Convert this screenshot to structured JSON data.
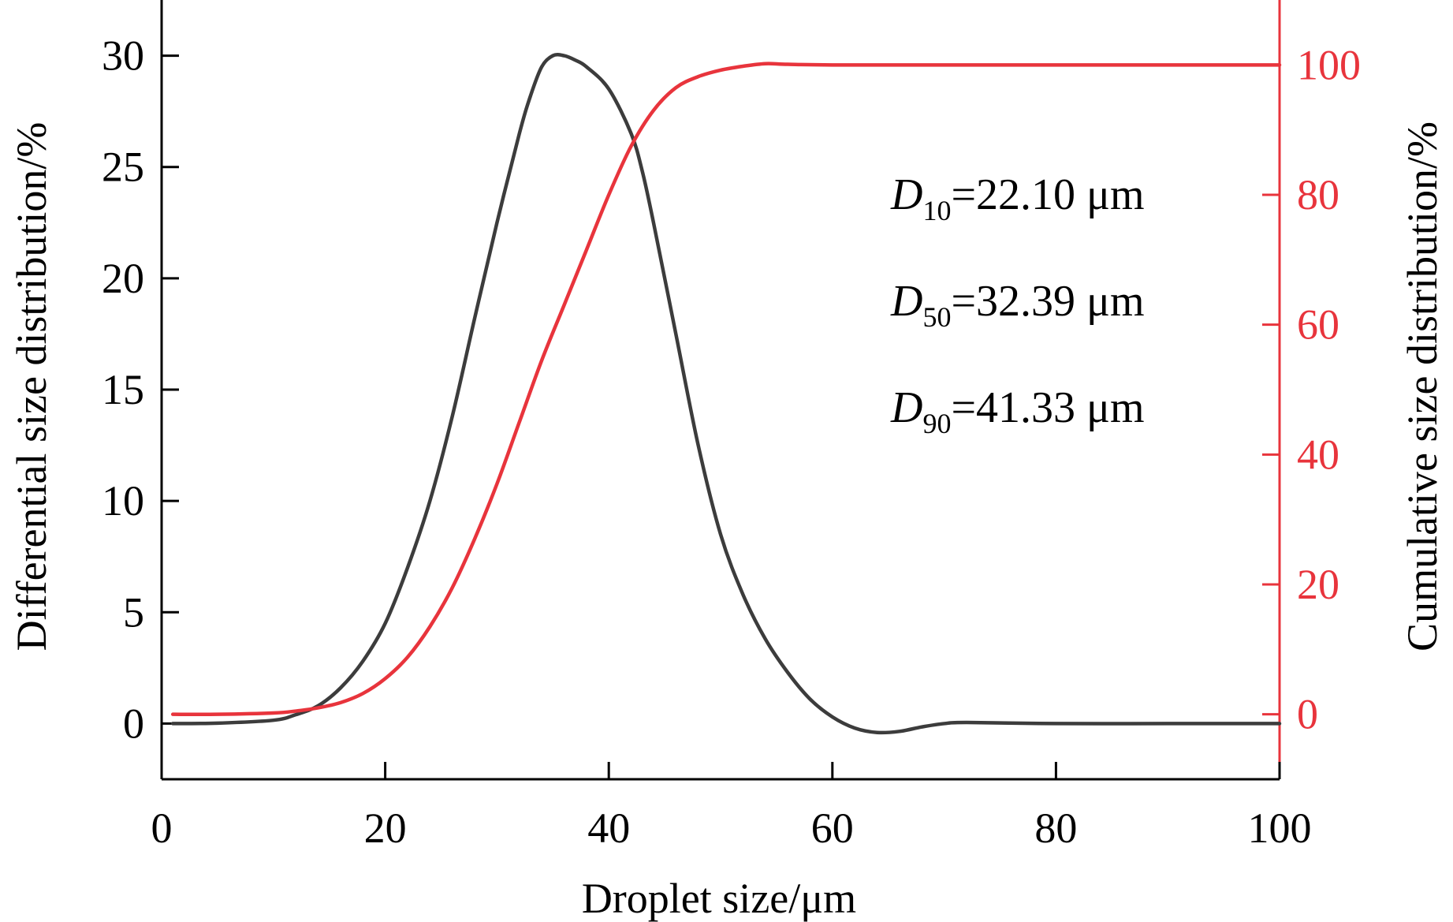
{
  "chart_data": {
    "type": "line",
    "title": "",
    "xlabel": "Droplet size/μm",
    "ylabel_left": "Differential size distribution/%",
    "ylabel_right": "Cumulative size distribution/%",
    "xlim": [
      0,
      100
    ],
    "ylim_left": [
      -2.5,
      32.5
    ],
    "ylim_right": [
      -10,
      110
    ],
    "xticks": [
      0,
      20,
      40,
      60,
      80,
      100
    ],
    "xtick_labels": [
      "0",
      "20",
      "40",
      "60",
      "80",
      "100"
    ],
    "yticks_left": [
      0,
      5,
      10,
      15,
      20,
      25,
      30
    ],
    "ytick_labels_left": [
      "0",
      "5",
      "10",
      "15",
      "20",
      "25",
      "30"
    ],
    "yticks_right": [
      0,
      20,
      40,
      60,
      80,
      100
    ],
    "ytick_labels_right": [
      "0",
      "20",
      "40",
      "60",
      "80",
      "100"
    ],
    "grid": false,
    "colors": {
      "differential": "#3c3c3c",
      "cumulative": "#e8343c",
      "axis": "#000000"
    },
    "series": [
      {
        "name": "Differential size distribution",
        "axis": "left",
        "x": [
          1,
          5,
          10,
          12,
          14,
          16,
          18,
          20,
          22,
          24,
          26,
          28,
          30,
          32,
          33,
          34,
          35,
          36,
          37,
          38,
          40,
          42,
          43,
          44,
          46,
          48,
          50,
          52,
          54,
          56,
          58,
          60,
          62,
          64,
          66,
          68,
          70,
          72,
          80,
          90,
          100
        ],
        "values": [
          0,
          0.02,
          0.15,
          0.4,
          0.8,
          1.6,
          2.8,
          4.5,
          7.0,
          10.0,
          13.8,
          18.2,
          22.5,
          26.5,
          28.2,
          29.5,
          30.0,
          30.0,
          29.8,
          29.5,
          28.5,
          26.5,
          24.8,
          22.5,
          17.5,
          12.5,
          8.5,
          5.8,
          3.8,
          2.3,
          1.1,
          0.3,
          -0.2,
          -0.4,
          -0.35,
          -0.15,
          0.0,
          0.05,
          0.0,
          0.0,
          0.0
        ]
      },
      {
        "name": "Cumulative size distribution",
        "axis": "right",
        "x": [
          1,
          5,
          10,
          12,
          14,
          16,
          18,
          20,
          22,
          24,
          26,
          28,
          30,
          32,
          34,
          36,
          38,
          40,
          42,
          44,
          46,
          48,
          50,
          52,
          54,
          56,
          60,
          70,
          80,
          90,
          100
        ],
        "values": [
          0,
          0,
          0.2,
          0.5,
          1.0,
          1.8,
          3.2,
          5.5,
          8.8,
          13.5,
          19.5,
          27.0,
          35.5,
          45.0,
          54.5,
          63.0,
          71.5,
          80.0,
          87.5,
          93.0,
          96.5,
          98.2,
          99.2,
          99.8,
          100.2,
          100.1,
          100.0,
          100.0,
          100.0,
          100.0,
          100.0
        ]
      }
    ],
    "annotations": [
      {
        "main": "D",
        "sub": "10",
        "text": "=22.10 μm"
      },
      {
        "main": "D",
        "sub": "50",
        "text": "=32.39 μm"
      },
      {
        "main": "D",
        "sub": "90",
        "text": "=41.33 μm"
      }
    ]
  }
}
